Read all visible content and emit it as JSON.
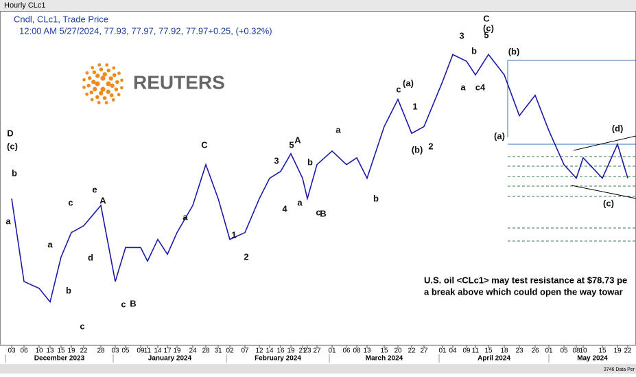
{
  "window_title": "Hourly CLc1",
  "legend": {
    "line1": "Cndl, CLc1, Trade Price",
    "line2": "12:00 AM 5/27/2024, 77.93, 77.97, 77.92, 77.97+0.25, (+0.32%)"
  },
  "logo": "REUTERS",
  "note": {
    "line1": "U.S. oil <CLc1> may test resistance at $78.73 pe",
    "line2": "a break above which could open the way towar"
  },
  "status": "3746 Data Per",
  "chart_data": {
    "type": "line",
    "categories": [
      "03",
      "06",
      "10",
      "13",
      "15",
      "19",
      "22",
      "28",
      "03",
      "05",
      "09",
      "11",
      "14",
      "17",
      "19",
      "24",
      "28",
      "31",
      "02",
      "07",
      "12",
      "14",
      "16",
      "19",
      "21",
      "23",
      "27",
      "01",
      "06",
      "08",
      "13",
      "15",
      "20",
      "22",
      "27",
      "01",
      "04",
      "09",
      "11",
      "15",
      "18",
      "23",
      "26",
      "01",
      "05",
      "08",
      "10",
      "15",
      "19",
      "22"
    ],
    "values": [
      76.2,
      70.1,
      69.6,
      68.6,
      71.9,
      73.7,
      74.2,
      75.7,
      70.1,
      72.6,
      72.6,
      71.6,
      73.2,
      72.1,
      73.7,
      75.7,
      78.7,
      76.2,
      73.2,
      73.7,
      76.2,
      77.7,
      78.2,
      79.5,
      77.7,
      76.2,
      78.7,
      79.7,
      78.7,
      79.2,
      77.7,
      81.5,
      83.5,
      81.0,
      81.5,
      84.8,
      86.8,
      86.3,
      85.3,
      86.8,
      85.3,
      82.3,
      83.8,
      81.2,
      78.7,
      77.7,
      79.2,
      77.7,
      80.2,
      77.7
    ],
    "color": "#1a1aa8",
    "ylim": [
      65.4,
      89.9
    ],
    "months": [
      "December 2023",
      "January 2024",
      "February 2024",
      "March 2024",
      "April 2024",
      "May 2024"
    ],
    "annotations": [
      "D",
      "(c)",
      "b",
      "a",
      "c",
      "e",
      "A",
      "a",
      "d",
      "b",
      "c",
      "c",
      "B",
      "C",
      "a",
      "1",
      "2",
      "3",
      "4",
      "5",
      "A",
      "b",
      "a",
      "c",
      "B",
      "a",
      "b",
      "c",
      "(a)",
      "1",
      "(b)",
      "2",
      "3",
      "b",
      "a",
      "c4",
      "5",
      "C",
      "(c)",
      "(b)",
      "(a)",
      "(d)",
      "(c)"
    ]
  }
}
